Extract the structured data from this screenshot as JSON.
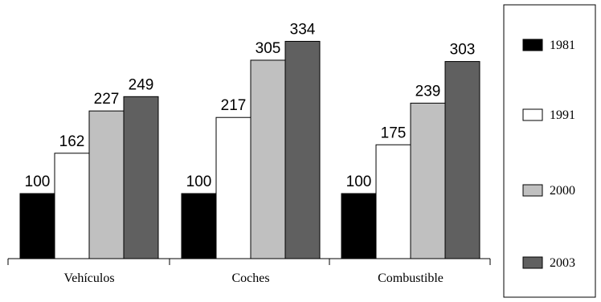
{
  "chart_data": {
    "type": "bar",
    "categories": [
      "Vehículos",
      "Coches",
      "Combustible"
    ],
    "series": [
      {
        "name": "1981",
        "values": [
          100,
          100,
          100
        ],
        "color": "#000000"
      },
      {
        "name": "1991",
        "values": [
          162,
          217,
          175
        ],
        "color": "#ffffff"
      },
      {
        "name": "2000",
        "values": [
          227,
          305,
          239
        ],
        "color": "#c0c0c0"
      },
      {
        "name": "2003",
        "values": [
          249,
          334,
          303
        ],
        "color": "#606060"
      }
    ],
    "ylim": [
      0,
      350
    ],
    "grid": false,
    "legend_position": "right",
    "title": "",
    "xlabel": "",
    "ylabel": ""
  }
}
